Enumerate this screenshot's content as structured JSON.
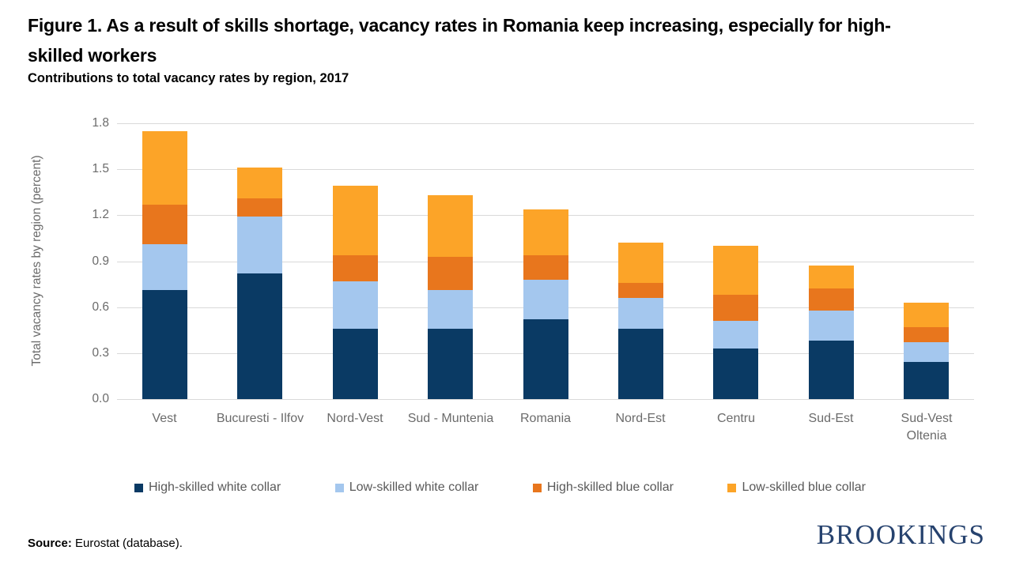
{
  "header": {
    "title_line1": "Figure 1. As a result of skills shortage, vacancy rates in Romania keep increasing, especially for high-",
    "title_line2": "skilled workers",
    "subtitle": "Contributions to total vacancy rates by region, 2017"
  },
  "chart_data": {
    "type": "bar",
    "stacked": true,
    "title": "Contributions to total vacancy rates by region, 2017",
    "xlabel": "",
    "ylabel": "Total vacancy rates by region (percent)",
    "ylim": [
      0,
      1.8
    ],
    "yticks": [
      0.0,
      0.3,
      0.6,
      0.9,
      1.2,
      1.5,
      1.8
    ],
    "grid": true,
    "legend_position": "bottom",
    "categories": [
      "Vest",
      "Bucuresti - Ilfov",
      "Nord-Vest",
      "Sud - Muntenia",
      "Romania",
      "Nord-Est",
      "Centru",
      "Sud-Est",
      "Sud-Vest Oltenia"
    ],
    "series": [
      {
        "name": "High-skilled white collar",
        "color": "#0a3a64",
        "values": [
          0.71,
          0.82,
          0.46,
          0.46,
          0.52,
          0.46,
          0.33,
          0.38,
          0.24
        ]
      },
      {
        "name": "Low-skilled white collar",
        "color": "#a4c7ee",
        "values": [
          0.3,
          0.37,
          0.31,
          0.25,
          0.26,
          0.2,
          0.18,
          0.2,
          0.13
        ]
      },
      {
        "name": "High-skilled blue collar",
        "color": "#e8761d",
        "values": [
          0.26,
          0.12,
          0.17,
          0.22,
          0.16,
          0.1,
          0.17,
          0.14,
          0.1
        ]
      },
      {
        "name": "Low-skilled blue collar",
        "color": "#fca428",
        "values": [
          0.48,
          0.2,
          0.45,
          0.4,
          0.3,
          0.26,
          0.32,
          0.15,
          0.16
        ]
      }
    ],
    "totals": [
      1.75,
      1.51,
      1.39,
      1.33,
      1.24,
      1.02,
      1.0,
      0.87,
      0.63
    ]
  },
  "colors": {
    "gridline": "#d9d9d9",
    "axis_text": "#6b6b6b",
    "brand_navy": "#26426e"
  },
  "footer": {
    "source_label": "Source:",
    "source_text": " Eurostat (database).",
    "brand": "BROOKINGS"
  }
}
